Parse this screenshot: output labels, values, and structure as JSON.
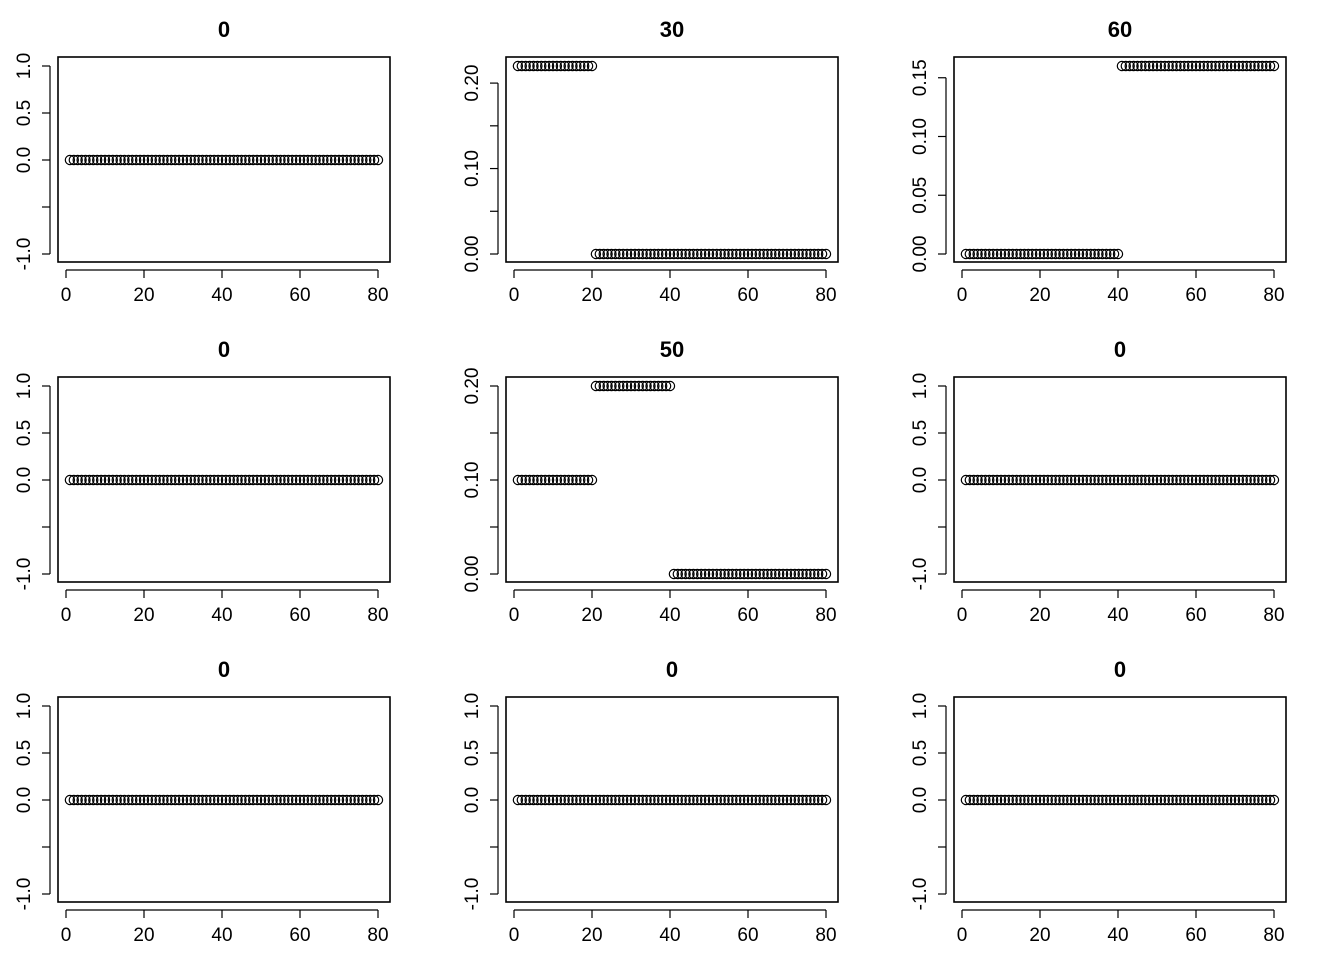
{
  "chart_data": [
    {
      "type": "scatter",
      "title": "0",
      "xlim": [
        0,
        80
      ],
      "ylim": [
        -1,
        1
      ],
      "xticks": [
        0,
        20,
        40,
        60,
        80
      ],
      "yticks": [
        -1,
        -0.5,
        0,
        0.5,
        1
      ],
      "xtick_labels": [
        "0",
        "20",
        "40",
        "60",
        "80"
      ],
      "ytick_labels": [
        "-1.0",
        "",
        "0.0",
        "0.5",
        "1.0"
      ],
      "segments": [
        {
          "from": 1,
          "to": 80,
          "y": 0
        }
      ]
    },
    {
      "type": "scatter",
      "title": "30",
      "xlim": [
        0,
        80
      ],
      "ylim": [
        0,
        0.22
      ],
      "xticks": [
        0,
        20,
        40,
        60,
        80
      ],
      "yticks": [
        0,
        0.05,
        0.1,
        0.15,
        0.2
      ],
      "xtick_labels": [
        "0",
        "20",
        "40",
        "60",
        "80"
      ],
      "ytick_labels": [
        "0.00",
        "",
        "0.10",
        "",
        "0.20"
      ],
      "segments": [
        {
          "from": 1,
          "to": 20,
          "y": 0.22
        },
        {
          "from": 21,
          "to": 80,
          "y": 0
        }
      ]
    },
    {
      "type": "scatter",
      "title": "60",
      "xlim": [
        0,
        80
      ],
      "ylim": [
        0,
        0.16
      ],
      "xticks": [
        0,
        20,
        40,
        60,
        80
      ],
      "yticks": [
        0,
        0.05,
        0.1,
        0.15
      ],
      "xtick_labels": [
        "0",
        "20",
        "40",
        "60",
        "80"
      ],
      "ytick_labels": [
        "0.00",
        "0.05",
        "0.10",
        "0.15"
      ],
      "segments": [
        {
          "from": 1,
          "to": 40,
          "y": 0
        },
        {
          "from": 41,
          "to": 80,
          "y": 0.16
        }
      ]
    },
    {
      "type": "scatter",
      "title": "0",
      "xlim": [
        0,
        80
      ],
      "ylim": [
        -1,
        1
      ],
      "xticks": [
        0,
        20,
        40,
        60,
        80
      ],
      "yticks": [
        -1,
        -0.5,
        0,
        0.5,
        1
      ],
      "xtick_labels": [
        "0",
        "20",
        "40",
        "60",
        "80"
      ],
      "ytick_labels": [
        "-1.0",
        "",
        "0.0",
        "0.5",
        "1.0"
      ],
      "segments": [
        {
          "from": 1,
          "to": 80,
          "y": 0
        }
      ]
    },
    {
      "type": "scatter",
      "title": "50",
      "xlim": [
        0,
        80
      ],
      "ylim": [
        0,
        0.2
      ],
      "xticks": [
        0,
        20,
        40,
        60,
        80
      ],
      "yticks": [
        0,
        0.05,
        0.1,
        0.15,
        0.2
      ],
      "xtick_labels": [
        "0",
        "20",
        "40",
        "60",
        "80"
      ],
      "ytick_labels": [
        "0.00",
        "",
        "0.10",
        "",
        "0.20"
      ],
      "segments": [
        {
          "from": 1,
          "to": 20,
          "y": 0.1
        },
        {
          "from": 21,
          "to": 40,
          "y": 0.2
        },
        {
          "from": 41,
          "to": 80,
          "y": 0
        }
      ]
    },
    {
      "type": "scatter",
      "title": "0",
      "xlim": [
        0,
        80
      ],
      "ylim": [
        -1,
        1
      ],
      "xticks": [
        0,
        20,
        40,
        60,
        80
      ],
      "yticks": [
        -1,
        -0.5,
        0,
        0.5,
        1
      ],
      "xtick_labels": [
        "0",
        "20",
        "40",
        "60",
        "80"
      ],
      "ytick_labels": [
        "-1.0",
        "",
        "0.0",
        "0.5",
        "1.0"
      ],
      "segments": [
        {
          "from": 1,
          "to": 80,
          "y": 0
        }
      ]
    },
    {
      "type": "scatter",
      "title": "0",
      "xlim": [
        0,
        80
      ],
      "ylim": [
        -1,
        1
      ],
      "xticks": [
        0,
        20,
        40,
        60,
        80
      ],
      "yticks": [
        -1,
        -0.5,
        0,
        0.5,
        1
      ],
      "xtick_labels": [
        "0",
        "20",
        "40",
        "60",
        "80"
      ],
      "ytick_labels": [
        "-1.0",
        "",
        "0.0",
        "0.5",
        "1.0"
      ],
      "segments": [
        {
          "from": 1,
          "to": 80,
          "y": 0
        }
      ]
    },
    {
      "type": "scatter",
      "title": "0",
      "xlim": [
        0,
        80
      ],
      "ylim": [
        -1,
        1
      ],
      "xticks": [
        0,
        20,
        40,
        60,
        80
      ],
      "yticks": [
        -1,
        -0.5,
        0,
        0.5,
        1
      ],
      "xtick_labels": [
        "0",
        "20",
        "40",
        "60",
        "80"
      ],
      "ytick_labels": [
        "-1.0",
        "",
        "0.0",
        "0.5",
        "1.0"
      ],
      "segments": [
        {
          "from": 1,
          "to": 80,
          "y": 0
        }
      ]
    },
    {
      "type": "scatter",
      "title": "0",
      "xlim": [
        0,
        80
      ],
      "ylim": [
        -1,
        1
      ],
      "xticks": [
        0,
        20,
        40,
        60,
        80
      ],
      "yticks": [
        -1,
        -0.5,
        0,
        0.5,
        1
      ],
      "xtick_labels": [
        "0",
        "20",
        "40",
        "60",
        "80"
      ],
      "ytick_labels": [
        "-1.0",
        "",
        "0.0",
        "0.5",
        "1.0"
      ],
      "segments": [
        {
          "from": 1,
          "to": 80,
          "y": 0
        }
      ]
    }
  ]
}
